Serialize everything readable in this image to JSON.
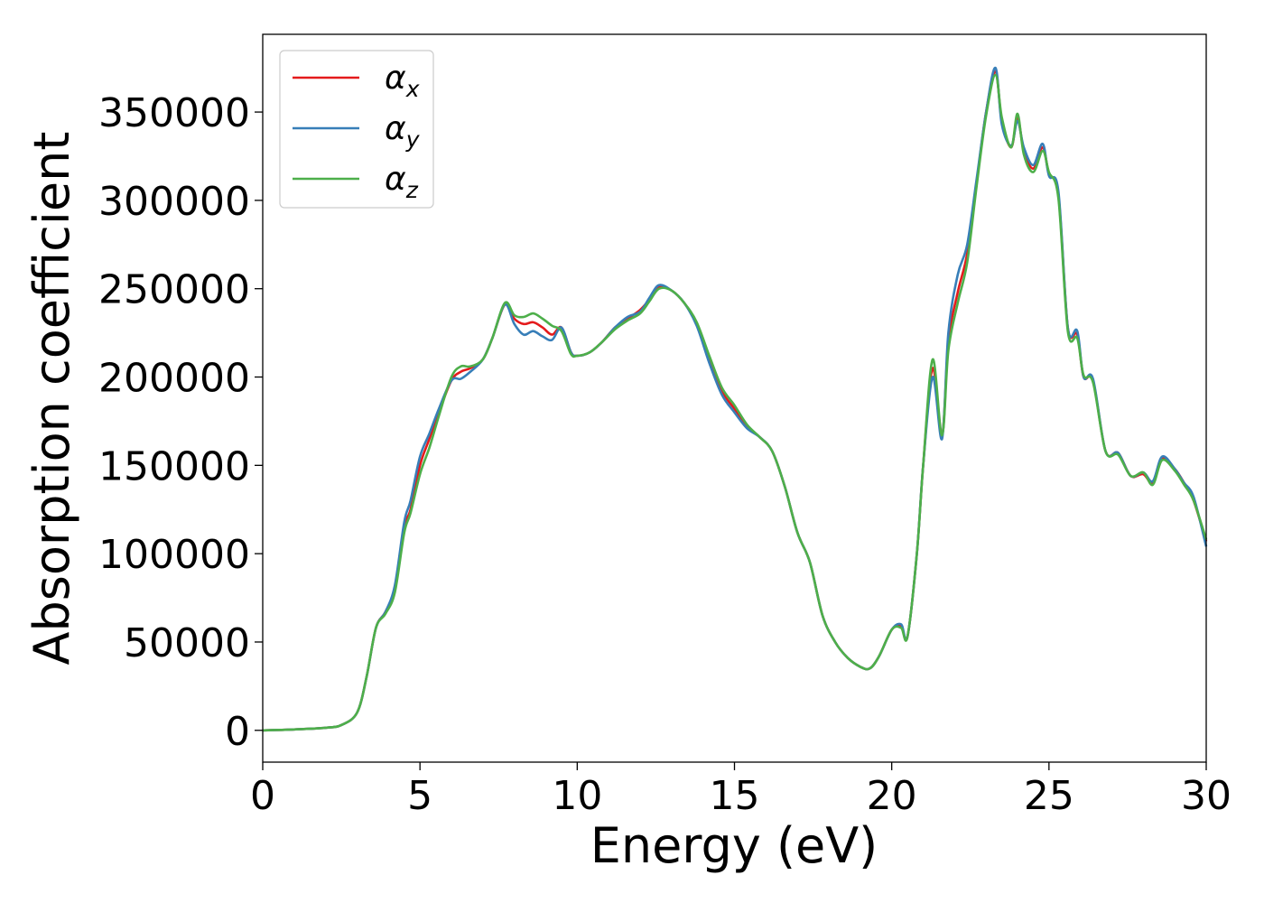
{
  "chart_data": {
    "type": "line",
    "title": "",
    "xlabel": "Energy (eV)",
    "ylabel": "Absorption coefficient",
    "xlim": [
      0,
      30
    ],
    "ylim": [
      -18000,
      394000
    ],
    "xticks": [
      0,
      5,
      10,
      15,
      20,
      25,
      30
    ],
    "yticks": [
      0,
      50000,
      100000,
      150000,
      200000,
      250000,
      300000,
      350000
    ],
    "grid": false,
    "legend_position": "top-left",
    "series": [
      {
        "name": "αx",
        "legend": {
          "base": "α",
          "sub": "x"
        },
        "color": "#e41a1c",
        "x": [
          0,
          1,
          2,
          2.5,
          3,
          3.3,
          3.6,
          3.9,
          4.2,
          4.5,
          4.7,
          5.0,
          5.3,
          5.6,
          6.0,
          6.3,
          6.6,
          7.0,
          7.3,
          7.7,
          8.0,
          8.3,
          8.6,
          8.9,
          9.2,
          9.5,
          9.8,
          10.0,
          10.4,
          10.8,
          11.2,
          11.6,
          12.0,
          12.3,
          12.6,
          13.0,
          13.4,
          13.8,
          14.2,
          14.6,
          15.0,
          15.4,
          15.8,
          16.2,
          16.6,
          17.0,
          17.4,
          17.8,
          18.2,
          18.6,
          19.0,
          19.3,
          19.6,
          20.0,
          20.3,
          20.5,
          20.8,
          21.0,
          21.3,
          21.6,
          21.8,
          22.1,
          22.4,
          22.7,
          23.0,
          23.3,
          23.5,
          23.8,
          24.0,
          24.2,
          24.5,
          24.8,
          25.0,
          25.3,
          25.6,
          25.9,
          26.1,
          26.4,
          26.8,
          27.2,
          27.6,
          28.0,
          28.3,
          28.6,
          29.0,
          29.3,
          29.6,
          30.0
        ],
        "y": [
          0,
          500,
          1500,
          3000,
          10000,
          30000,
          58000,
          67000,
          80000,
          115000,
          125000,
          150000,
          165000,
          180000,
          198000,
          203000,
          205000,
          210000,
          222000,
          241000,
          233000,
          230000,
          231000,
          228000,
          224000,
          228000,
          214000,
          212000,
          214000,
          220000,
          228000,
          233000,
          238000,
          244000,
          251000,
          249000,
          242000,
          230000,
          210000,
          192000,
          182000,
          172000,
          166000,
          158000,
          138000,
          112000,
          95000,
          65000,
          50000,
          41000,
          36000,
          35000,
          42000,
          57000,
          59000,
          53000,
          100000,
          150000,
          205000,
          167000,
          220000,
          248000,
          270000,
          310000,
          350000,
          373000,
          345000,
          330000,
          347000,
          328000,
          318000,
          330000,
          315000,
          303000,
          228000,
          224000,
          200000,
          198000,
          158000,
          157000,
          144000,
          145000,
          140000,
          154000,
          148000,
          140000,
          130000,
          107000
        ]
      },
      {
        "name": "αy",
        "legend": {
          "base": "α",
          "sub": "y"
        },
        "color": "#377eb8",
        "x": [
          0,
          1,
          2,
          2.5,
          3,
          3.3,
          3.6,
          3.9,
          4.2,
          4.5,
          4.7,
          5.0,
          5.3,
          5.6,
          6.0,
          6.3,
          6.6,
          7.0,
          7.3,
          7.7,
          8.0,
          8.3,
          8.6,
          8.9,
          9.2,
          9.5,
          9.8,
          10.0,
          10.4,
          10.8,
          11.2,
          11.6,
          12.0,
          12.3,
          12.6,
          13.0,
          13.4,
          13.8,
          14.2,
          14.6,
          15.0,
          15.4,
          15.8,
          16.2,
          16.6,
          17.0,
          17.4,
          17.8,
          18.2,
          18.6,
          19.0,
          19.3,
          19.6,
          20.0,
          20.3,
          20.5,
          20.8,
          21.0,
          21.3,
          21.6,
          21.8,
          22.1,
          22.4,
          22.7,
          23.0,
          23.3,
          23.5,
          23.8,
          24.0,
          24.2,
          24.5,
          24.8,
          25.0,
          25.3,
          25.6,
          25.9,
          26.1,
          26.4,
          26.8,
          27.2,
          27.6,
          28.0,
          28.3,
          28.6,
          29.0,
          29.3,
          29.6,
          30.0
        ],
        "y": [
          0,
          500,
          1500,
          3000,
          10000,
          30000,
          58000,
          67000,
          82000,
          118000,
          130000,
          155000,
          168000,
          182000,
          198000,
          199000,
          203000,
          210000,
          222000,
          241000,
          230000,
          224000,
          226000,
          223000,
          221000,
          228000,
          214000,
          212000,
          214000,
          220000,
          228000,
          234000,
          237000,
          245000,
          252000,
          249000,
          242000,
          229000,
          208000,
          190000,
          180000,
          171000,
          166000,
          158000,
          138000,
          112000,
          95000,
          65000,
          50000,
          41000,
          36000,
          35000,
          42000,
          57000,
          60000,
          53000,
          100000,
          150000,
          200000,
          165000,
          225000,
          258000,
          275000,
          312000,
          350000,
          375000,
          343000,
          331000,
          345000,
          330000,
          320000,
          332000,
          314000,
          305000,
          228000,
          226000,
          200000,
          199000,
          158000,
          157000,
          144000,
          146000,
          141000,
          155000,
          148000,
          140000,
          132000,
          104000
        ]
      },
      {
        "name": "αz",
        "legend": {
          "base": "α",
          "sub": "z"
        },
        "color": "#4daf4a",
        "x": [
          0,
          1,
          2,
          2.5,
          3,
          3.3,
          3.6,
          3.9,
          4.2,
          4.5,
          4.7,
          5.0,
          5.3,
          5.6,
          6.0,
          6.3,
          6.6,
          7.0,
          7.3,
          7.7,
          8.0,
          8.3,
          8.6,
          8.9,
          9.2,
          9.5,
          9.8,
          10.0,
          10.4,
          10.8,
          11.2,
          11.6,
          12.0,
          12.3,
          12.6,
          13.0,
          13.4,
          13.8,
          14.2,
          14.6,
          15.0,
          15.4,
          15.8,
          16.2,
          16.6,
          17.0,
          17.4,
          17.8,
          18.2,
          18.6,
          19.0,
          19.3,
          19.6,
          20.0,
          20.3,
          20.5,
          20.8,
          21.0,
          21.3,
          21.6,
          21.8,
          22.1,
          22.4,
          22.7,
          23.0,
          23.3,
          23.5,
          23.8,
          24.0,
          24.2,
          24.5,
          24.8,
          25.0,
          25.3,
          25.6,
          25.9,
          26.1,
          26.4,
          26.8,
          27.2,
          27.6,
          28.0,
          28.3,
          28.6,
          29.0,
          29.3,
          29.6,
          30.0
        ],
        "y": [
          0,
          500,
          1500,
          3000,
          10000,
          30000,
          58000,
          66000,
          78000,
          112000,
          123000,
          145000,
          160000,
          178000,
          200000,
          206000,
          206000,
          210000,
          222000,
          242000,
          235000,
          234000,
          236000,
          233000,
          229000,
          226000,
          213000,
          212000,
          214000,
          220000,
          227000,
          232000,
          236000,
          243000,
          250000,
          249000,
          242000,
          231000,
          212000,
          194000,
          184000,
          173000,
          166000,
          158000,
          138000,
          112000,
          95000,
          65000,
          50000,
          41000,
          36000,
          35000,
          42000,
          57000,
          58000,
          53000,
          100000,
          150000,
          210000,
          167000,
          215000,
          242000,
          265000,
          308000,
          348000,
          371000,
          347000,
          330000,
          349000,
          326000,
          316000,
          328000,
          316000,
          301000,
          226000,
          222000,
          201000,
          197000,
          158000,
          156000,
          144000,
          146000,
          139000,
          153000,
          147000,
          139000,
          130000,
          108000
        ]
      }
    ]
  }
}
